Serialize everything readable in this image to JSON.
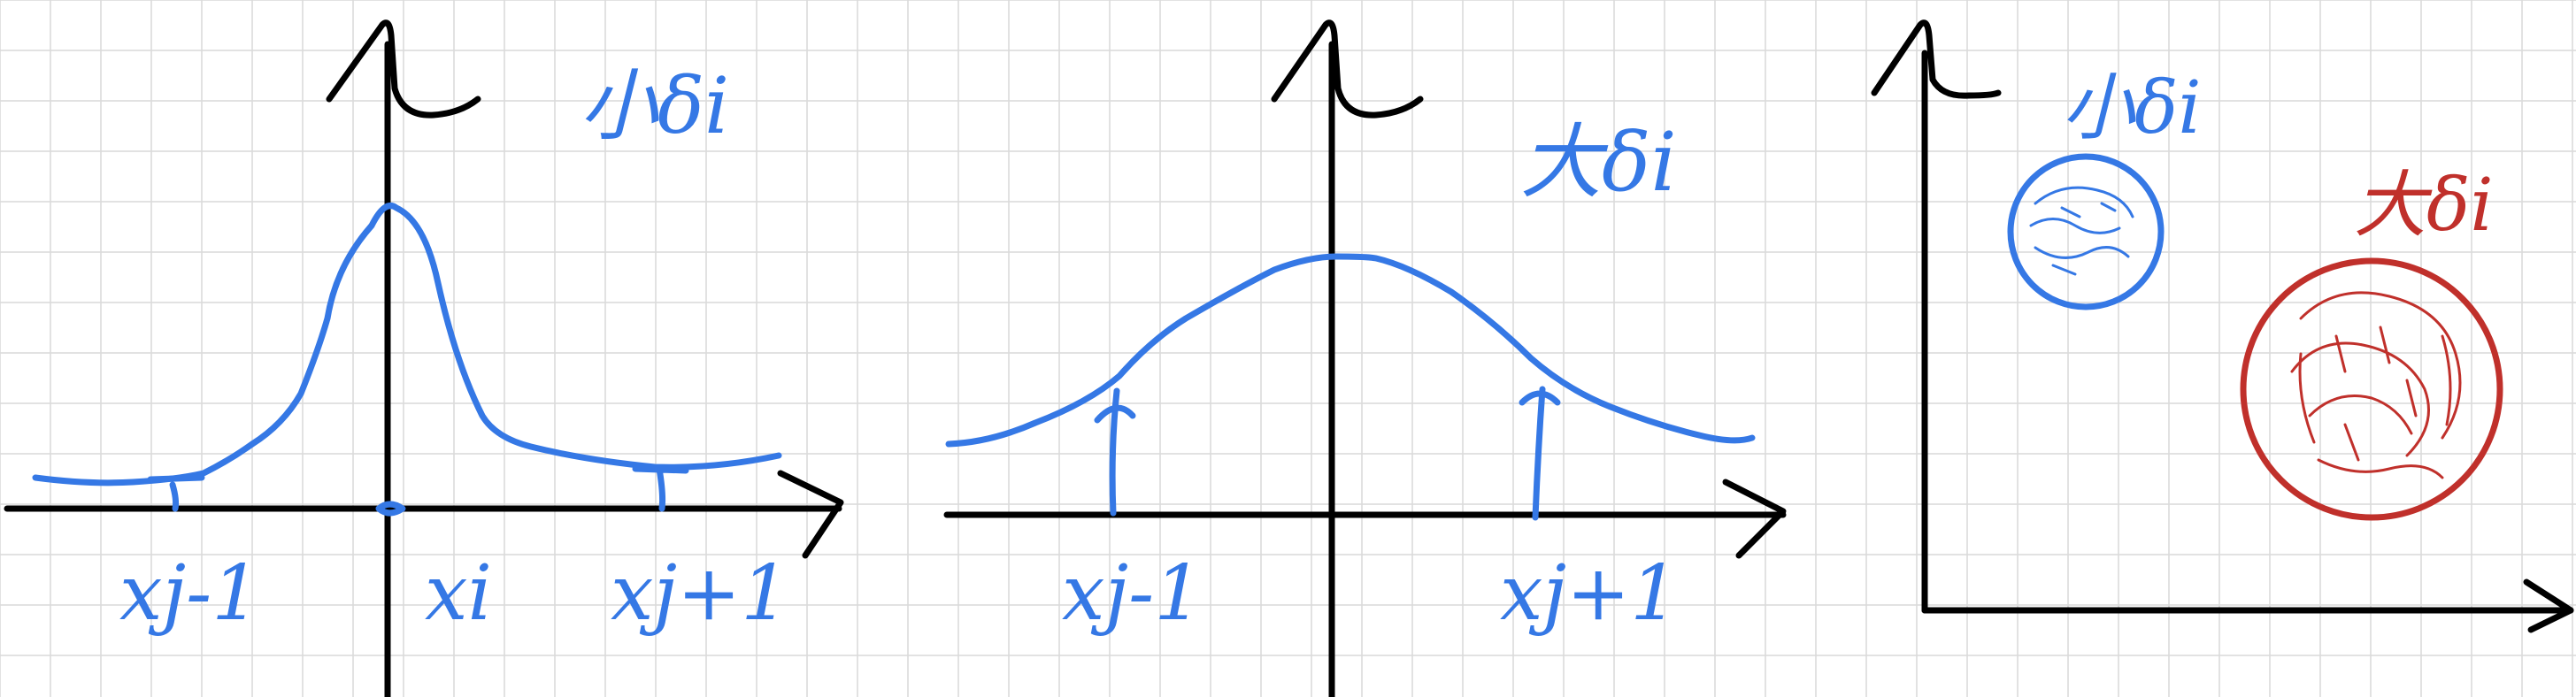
{
  "colors": {
    "grid": "#d9d9d9",
    "axis": "#000000",
    "ink_blue": "#3578e5",
    "ink_red": "#c0302b",
    "background": "#ffffff"
  },
  "panel1": {
    "y_axis_label": "h",
    "annotation": "小δi",
    "tick_left": "xj-1",
    "tick_center": "xi",
    "tick_right": "xj+1"
  },
  "panel2": {
    "y_axis_label": "h",
    "annotation": "大δi",
    "tick_left": "xj-1",
    "tick_right": "xj+1"
  },
  "panel3": {
    "y_axis_label": "h",
    "annotation_small": "小δi",
    "annotation_large": "大δi"
  }
}
